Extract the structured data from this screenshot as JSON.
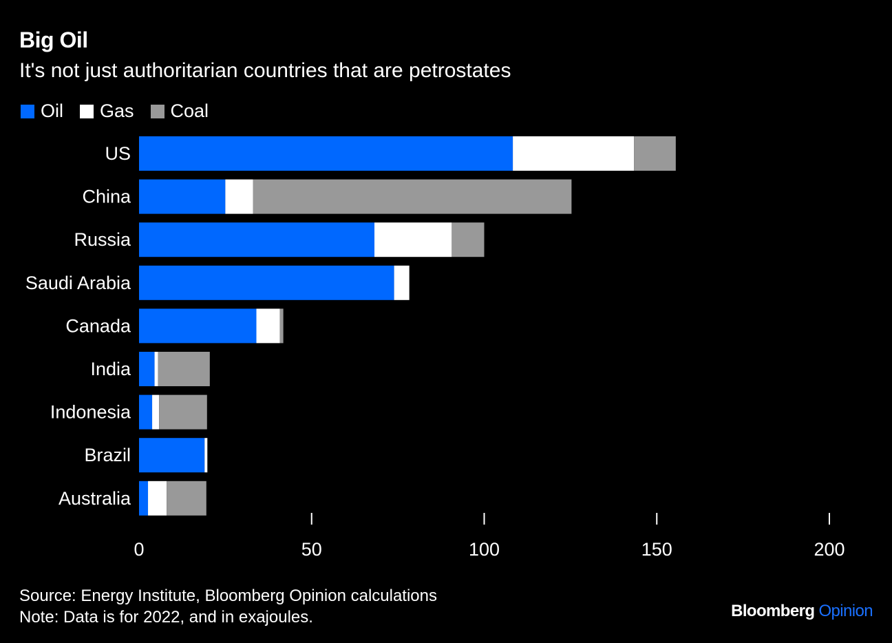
{
  "colors": {
    "background": "#000000",
    "text": "#ffffff",
    "oil": "#0068ff",
    "gas": "#ffffff",
    "coal": "#999999",
    "brand_accent": "#1a70ff"
  },
  "header": {
    "title": "Big Oil",
    "subtitle": "It's not just authoritarian countries that are petrostates"
  },
  "footer": {
    "source": "Source: Energy Institute, Bloomberg Opinion calculations",
    "note": "Note: Data is for 2022, and in exajoules."
  },
  "brand": {
    "name": "Bloomberg",
    "section": "Opinion"
  },
  "chart_data": {
    "type": "bar",
    "orientation": "horizontal",
    "stacked": true,
    "title": "Big Oil",
    "subtitle": "It's not just authoritarian countries that are petrostates",
    "xlabel": "",
    "ylabel": "",
    "xlim": [
      0,
      200
    ],
    "xticks": [
      0,
      50,
      100,
      150,
      200
    ],
    "grid": false,
    "legend_position": "top-left",
    "categories": [
      "US",
      "China",
      "Russia",
      "Saudi Arabia",
      "Canada",
      "India",
      "Indonesia",
      "Brazil",
      "Australia"
    ],
    "series": [
      {
        "name": "Oil",
        "color": "#0068ff",
        "values": [
          108.3,
          25.0,
          68.2,
          73.9,
          34.0,
          4.5,
          3.8,
          19.0,
          2.6
        ]
      },
      {
        "name": "Gas",
        "color": "#ffffff",
        "values": [
          35.1,
          8.0,
          22.4,
          4.4,
          6.8,
          1.0,
          2.0,
          0.8,
          5.4
        ]
      },
      {
        "name": "Coal",
        "color": "#999999",
        "values": [
          12.1,
          92.3,
          9.4,
          0.0,
          1.0,
          15.0,
          13.9,
          0.0,
          11.5
        ]
      }
    ]
  }
}
